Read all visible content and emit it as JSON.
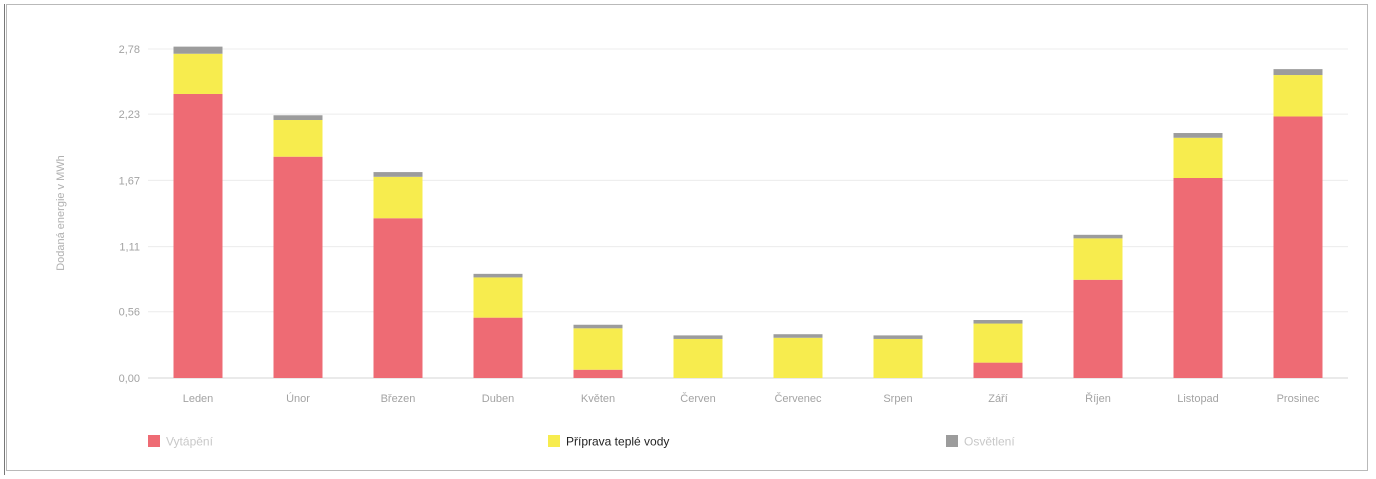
{
  "chart_data": {
    "type": "bar",
    "stacked": true,
    "ylabel": "Dodaná energie v MWh",
    "yticks": [
      "0,00",
      "0,56",
      "1,11",
      "1,67",
      "2,23",
      "2,78"
    ],
    "ytick_values": [
      0,
      0.56,
      1.11,
      1.67,
      2.23,
      2.78
    ],
    "ylim": [
      0,
      2.78
    ],
    "grid": true,
    "legend_position": "bottom",
    "categories": [
      "Leden",
      "Únor",
      "Březen",
      "Duben",
      "Květen",
      "Červen",
      "Červenec",
      "Srpen",
      "Září",
      "Říjen",
      "Listopad",
      "Prosinec"
    ],
    "series": [
      {
        "name": "Vytápění",
        "color": "#ee6b74",
        "values": [
          2.4,
          1.87,
          1.35,
          0.51,
          0.07,
          0.0,
          0.0,
          0.0,
          0.13,
          0.83,
          1.69,
          2.21
        ]
      },
      {
        "name": "Příprava teplé vody",
        "color": "#f7ec4e",
        "values": [
          0.34,
          0.31,
          0.35,
          0.34,
          0.35,
          0.33,
          0.34,
          0.33,
          0.33,
          0.35,
          0.34,
          0.35
        ]
      },
      {
        "name": "Osvětlení",
        "color": "#9c9c9c",
        "values": [
          0.06,
          0.04,
          0.04,
          0.03,
          0.03,
          0.03,
          0.03,
          0.03,
          0.03,
          0.03,
          0.04,
          0.05
        ]
      }
    ]
  }
}
